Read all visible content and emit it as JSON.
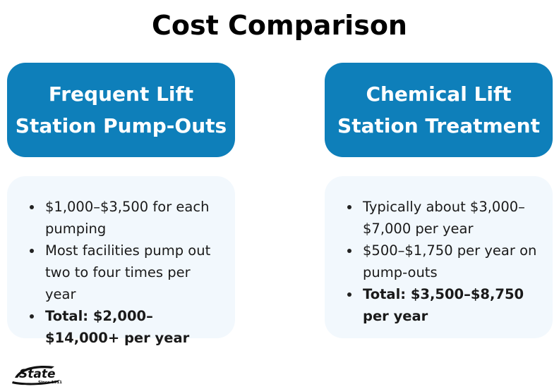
{
  "title": "Cost Comparison",
  "left": {
    "header_line1": "Frequent Lift",
    "header_line2": "Station Pump-Outs",
    "items": [
      "$1,000–$3,500 for each pumping",
      "Most facilities pump out two to four times per year",
      "Total: $2,000–$14,000+ per year"
    ]
  },
  "right": {
    "header_line1": "Chemical Lift",
    "header_line2": "Station Treatment",
    "items": [
      "Typically about $3,000–$7,000 per year",
      "$500–$1,750 per year on pump-outs",
      "Total: $3,500–$8,750 per year"
    ]
  },
  "logo": {
    "name": "State",
    "tagline": "Since 1911"
  },
  "colors": {
    "header_bg": "#0e7fba",
    "card_bg": "#f2f8fd"
  }
}
